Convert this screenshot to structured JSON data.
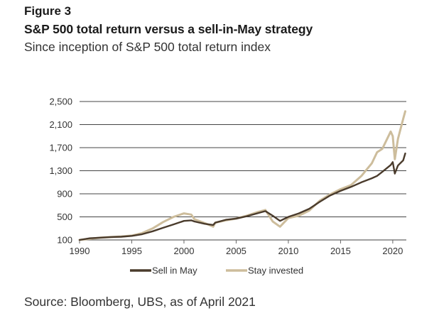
{
  "header": {
    "figure_label": "Figure 3",
    "title": "S&P 500 total return versus a sell-in-May strategy",
    "subtitle": "Since inception of S&P 500 total return index"
  },
  "footer": {
    "source": "Source: Bloomberg, UBS, as of April 2021"
  },
  "colors": {
    "sell_in_may": "#4a3b2c",
    "stay_invested": "#cdbd9c",
    "grid": "#444444",
    "axis": "#666666"
  },
  "chart_data": {
    "type": "line",
    "title": "S&P 500 total return versus a sell-in-May strategy",
    "subtitle": "Since inception of S&P 500 total return index",
    "xlabel": "",
    "ylabel": "",
    "xlim": [
      1990,
      2021.3
    ],
    "ylim": [
      100,
      2500
    ],
    "x_ticks": [
      1990,
      1995,
      2000,
      2005,
      2010,
      2015,
      2020
    ],
    "x_tick_labels": [
      "1990",
      "1995",
      "2000",
      "2005",
      "2010",
      "2015",
      "2020"
    ],
    "y_ticks": [
      100,
      500,
      900,
      1300,
      1700,
      2100,
      2500
    ],
    "y_tick_labels": [
      "100",
      "500",
      "900",
      "1,300",
      "1,700",
      "2,100",
      "2,500"
    ],
    "grid": true,
    "legend_position": "bottom-center",
    "series": [
      {
        "name": "Sell in May",
        "color": "#4a3b2c",
        "x": [
          1990,
          1991,
          1992,
          1993,
          1994,
          1995,
          1996,
          1997,
          1998,
          1999,
          2000,
          2000.7,
          2001,
          2002,
          2002.8,
          2003,
          2004,
          2005,
          2006,
          2007,
          2007.8,
          2008.5,
          2009.2,
          2010,
          2011,
          2012,
          2013,
          2014,
          2015,
          2016,
          2017,
          2018,
          2018.5,
          2019,
          2019.8,
          2020,
          2020.2,
          2020.5,
          2021,
          2021.2
        ],
        "values": [
          100,
          130,
          140,
          150,
          155,
          170,
          200,
          250,
          310,
          370,
          430,
          440,
          420,
          380,
          360,
          400,
          450,
          470,
          510,
          560,
          600,
          520,
          430,
          500,
          560,
          640,
          760,
          870,
          950,
          1020,
          1100,
          1170,
          1210,
          1280,
          1400,
          1450,
          1250,
          1390,
          1480,
          1600
        ]
      },
      {
        "name": "Stay invested",
        "color": "#cdbd9c",
        "x": [
          1990,
          1991,
          1992,
          1993,
          1994,
          1995,
          1996,
          1997,
          1998,
          1999,
          2000,
          2000.7,
          2001,
          2002,
          2002.8,
          2003,
          2004,
          2005,
          2006,
          2007,
          2007.8,
          2008.5,
          2009.2,
          2010,
          2011,
          2012,
          2013,
          2014,
          2015,
          2016,
          2017,
          2018,
          2018.5,
          2019,
          2019.8,
          2020,
          2020.2,
          2020.5,
          2021,
          2021.2
        ],
        "values": [
          100,
          120,
          140,
          150,
          160,
          175,
          220,
          300,
          410,
          500,
          560,
          540,
          460,
          390,
          330,
          400,
          440,
          470,
          520,
          580,
          620,
          420,
          330,
          480,
          520,
          610,
          780,
          890,
          980,
          1050,
          1210,
          1430,
          1620,
          1680,
          1980,
          1900,
          1500,
          1850,
          2200,
          2330
        ]
      }
    ]
  }
}
